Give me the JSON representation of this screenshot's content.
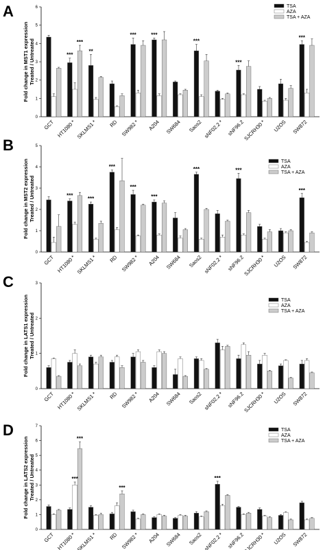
{
  "chart_data": [
    {
      "panel": "A",
      "type": "bar",
      "ylabel_lines": [
        "Fold change in MST1 expression",
        "Treated / Untreated"
      ],
      "ylim": [
        0,
        6
      ],
      "yticks": [
        "0",
        "1",
        "2",
        "3",
        "4",
        "5",
        "6"
      ],
      "categories": [
        "GCT",
        "HT1080 *",
        "SKLMS1 *",
        "RD",
        "SW982 *",
        "A204",
        "SW684",
        "Saos2",
        "sNF02.2 *",
        "sNF96.2",
        "SJCRH30 *",
        "U2OS",
        "SW872"
      ],
      "legend": [
        "TSA",
        "AZA",
        "TSA + AZA"
      ],
      "series": [
        {
          "name": "TSA",
          "color": "#111111",
          "values": [
            4.35,
            2.95,
            2.8,
            1.8,
            3.95,
            4.2,
            1.9,
            3.6,
            1.4,
            2.55,
            1.5,
            1.8,
            3.95
          ]
        },
        {
          "name": "AZA",
          "color": "#ffffff",
          "values": [
            1.1,
            1.5,
            0.95,
            0.55,
            1.3,
            1.15,
            1.2,
            1.1,
            0.95,
            1.2,
            0.85,
            0.9,
            1.3
          ]
        },
        {
          "name": "TSA + AZA",
          "color": "#cccccc",
          "values": [
            2.65,
            3.6,
            2.15,
            1.15,
            3.9,
            4.2,
            1.45,
            3.05,
            1.25,
            2.75,
            1.0,
            1.55,
            3.9
          ]
        }
      ],
      "errors": [
        [
          0.1,
          0.25,
          0.6,
          0.15,
          0.35,
          0.1,
          0.05,
          0.35,
          0.05,
          0.25,
          0.15,
          0.25,
          0.2
        ],
        [
          0.15,
          0.35,
          0.1,
          0.05,
          0.15,
          0.1,
          0.05,
          0.1,
          0.05,
          0.05,
          0.05,
          0.1,
          0.2
        ],
        [
          0.05,
          0.3,
          0.05,
          0.1,
          0.25,
          0.45,
          0.05,
          0.35,
          0.05,
          0.3,
          0.05,
          0.15,
          0.35
        ]
      ],
      "significance": [
        {
          "category": "HT1080 *",
          "series": 0,
          "label": "***"
        },
        {
          "category": "SKLMS1 *",
          "series": 0,
          "label": "**"
        },
        {
          "category": "HT1080 *",
          "series": 2,
          "label": "***"
        },
        {
          "category": "SW982 *",
          "series": 0,
          "label": "***"
        },
        {
          "category": "A204",
          "series": 0,
          "label": "***"
        },
        {
          "category": "Saos2",
          "series": 0,
          "label": "***"
        },
        {
          "category": "sNF96.2",
          "series": 0,
          "label": "***"
        },
        {
          "category": "SW872",
          "series": 0,
          "label": "***"
        }
      ]
    },
    {
      "panel": "B",
      "type": "bar",
      "ylabel_lines": [
        "Fold change in MST2 expression",
        "Treated / Untreated"
      ],
      "ylim": [
        0,
        5
      ],
      "yticks": [
        "0",
        "1",
        "2",
        "3",
        "4",
        "5"
      ],
      "categories": [
        "GCT",
        "HT1080 *",
        "SKLMS1 *",
        "RD",
        "SW982 *",
        "A204",
        "SW684",
        "Saos2",
        "sNF02.2 *",
        "sNF96.2",
        "SJCRH30 *",
        "U2OS",
        "SW872"
      ],
      "legend": [
        "TSA",
        "AZA",
        "TSA + AZA"
      ],
      "series": [
        {
          "name": "TSA",
          "color": "#111111",
          "values": [
            2.45,
            2.4,
            2.25,
            3.75,
            2.7,
            2.35,
            1.6,
            3.65,
            1.8,
            3.45,
            1.2,
            1.0,
            2.55
          ]
        },
        {
          "name": "AZA",
          "color": "#ffffff",
          "values": [
            0.45,
            1.3,
            0.6,
            1.05,
            0.75,
            0.8,
            0.65,
            0.6,
            0.7,
            0.8,
            0.6,
            0.9,
            0.45
          ]
        },
        {
          "name": "TSA + AZA",
          "color": "#cccccc",
          "values": [
            1.2,
            2.65,
            1.35,
            3.35,
            2.2,
            2.3,
            1.05,
            2.0,
            1.45,
            1.85,
            0.95,
            1.0,
            0.9
          ]
        }
      ],
      "errors": [
        [
          0.15,
          0.1,
          0.1,
          0.1,
          0.2,
          0.1,
          0.25,
          0.1,
          0.15,
          0.25,
          0.1,
          0.1,
          0.2
        ],
        [
          0.25,
          0.1,
          0.05,
          0.1,
          0.05,
          0.05,
          0.1,
          0.05,
          0.1,
          0.05,
          0.05,
          0.05,
          0.05
        ],
        [
          0.55,
          0.15,
          0.1,
          1.05,
          0.05,
          0.1,
          0.05,
          0.05,
          0.05,
          0.1,
          0.1,
          0.05,
          0.05
        ]
      ],
      "significance": [
        {
          "category": "HT1080 *",
          "series": 0,
          "label": "***"
        },
        {
          "category": "SKLMS1 *",
          "series": 0,
          "label": "***"
        },
        {
          "category": "RD",
          "series": 0,
          "label": "***"
        },
        {
          "category": "SW982 *",
          "series": 0,
          "label": "***"
        },
        {
          "category": "A204",
          "series": 0,
          "label": "***"
        },
        {
          "category": "Saos2",
          "series": 0,
          "label": "***"
        },
        {
          "category": "sNF96.2",
          "series": 0,
          "label": "***"
        },
        {
          "category": "SW872",
          "series": 0,
          "label": "***"
        }
      ]
    },
    {
      "panel": "C",
      "type": "bar",
      "ylabel_lines": [
        "Fold change in LATS1 expression",
        "Treated / Untreated"
      ],
      "ylim": [
        0,
        3
      ],
      "yticks": [
        "0",
        "1",
        "2",
        "3"
      ],
      "categories": [
        "GCT",
        "HT1080 *",
        "SKLMS1 *",
        "RD",
        "SW982 *",
        "A204",
        "SW684",
        "Saos2",
        "sNF02.2 *",
        "sNF96.2",
        "SJCRH30 *",
        "U2OS",
        "SW872"
      ],
      "legend": [
        "TSA",
        "AZA",
        "TSA + AZA"
      ],
      "series": [
        {
          "name": "TSA",
          "color": "#111111",
          "values": [
            0.6,
            0.75,
            0.9,
            0.75,
            0.9,
            0.6,
            0.4,
            0.85,
            1.3,
            0.85,
            0.7,
            0.65,
            0.7
          ]
        },
        {
          "name": "AZA",
          "color": "#ffffff",
          "values": [
            0.85,
            1.0,
            0.7,
            0.9,
            1.05,
            1.05,
            0.85,
            0.8,
            1.1,
            1.25,
            0.95,
            0.8,
            0.8
          ]
        },
        {
          "name": "TSA + AZA",
          "color": "#cccccc",
          "values": [
            0.35,
            0.65,
            0.9,
            0.6,
            0.75,
            1.0,
            0.35,
            0.55,
            1.2,
            0.95,
            0.5,
            0.3,
            0.45
          ]
        }
      ],
      "errors": [
        [
          0.05,
          0.05,
          0.05,
          0.05,
          0.1,
          0.05,
          0.15,
          0.05,
          0.1,
          0.1,
          0.1,
          0.05,
          0.1
        ],
        [
          0.02,
          0.1,
          0.05,
          0.05,
          0.05,
          0.05,
          0.05,
          0.05,
          0.1,
          0.05,
          0.05,
          0.02,
          0.05
        ],
        [
          0.02,
          0.05,
          0.05,
          0.05,
          0.05,
          0.05,
          0.02,
          0.02,
          0.03,
          0.1,
          0.02,
          0.02,
          0.02
        ]
      ],
      "significance": []
    },
    {
      "panel": "D",
      "type": "bar",
      "ylabel_lines": [
        "Fold change in LATS2 expression",
        "Treated / Untreated"
      ],
      "ylim": [
        0,
        7
      ],
      "yticks": [
        "0",
        "1",
        "2",
        "3",
        "4",
        "5",
        "6",
        "7"
      ],
      "categories": [
        "GCT",
        "HT1080 *",
        "SKLMS1 *",
        "RD",
        "SW982 *",
        "A204",
        "SW684",
        "Saos2",
        "sNF02.2 *",
        "sNF96.2",
        "SJCRH30 *",
        "U2OS",
        "SW872"
      ],
      "legend": [
        "TSA",
        "AZA",
        "TSA + AZA"
      ],
      "series": [
        {
          "name": "TSA",
          "color": "#111111",
          "values": [
            1.55,
            1.35,
            1.5,
            1.05,
            1.2,
            0.8,
            0.75,
            1.1,
            3.05,
            1.5,
            1.35,
            0.95,
            1.8
          ]
        },
        {
          "name": "AZA",
          "color": "#ffffff",
          "values": [
            1.0,
            3.0,
            0.95,
            1.6,
            0.7,
            1.0,
            0.95,
            0.85,
            1.6,
            1.0,
            0.9,
            1.15,
            0.65
          ]
        },
        {
          "name": "TSA + AZA",
          "color": "#cccccc",
          "values": [
            1.3,
            5.45,
            1.0,
            2.4,
            1.0,
            0.9,
            0.9,
            1.2,
            2.3,
            1.1,
            0.8,
            0.65,
            0.75
          ]
        }
      ],
      "errors": [
        [
          0.1,
          0.1,
          0.1,
          0.1,
          0.1,
          0.05,
          0.05,
          0.1,
          0.2,
          0.05,
          0.1,
          0.05,
          0.1
        ],
        [
          0.05,
          0.2,
          0.05,
          0.2,
          0.05,
          0.05,
          0.05,
          0.05,
          0.1,
          0.05,
          0.05,
          0.05,
          0.05
        ],
        [
          0.05,
          0.45,
          0.1,
          0.2,
          0.05,
          0.05,
          0.05,
          0.05,
          0.05,
          0.05,
          0.05,
          0.05,
          0.05
        ]
      ],
      "significance": [
        {
          "category": "HT1080 *",
          "series": 1,
          "label": "***"
        },
        {
          "category": "HT1080 *",
          "series": 2,
          "label": "***"
        },
        {
          "category": "RD",
          "series": 2,
          "label": "***"
        },
        {
          "category": "sNF02.2 *",
          "series": 0,
          "label": "***"
        }
      ]
    }
  ]
}
